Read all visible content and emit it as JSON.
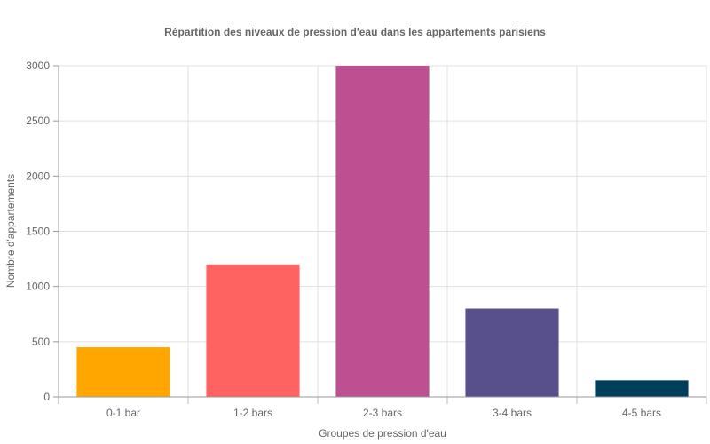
{
  "chart_data": {
    "type": "bar",
    "title": "Répartition des niveaux de pression d'eau dans les appartements parisiens",
    "xlabel": "Groupes de pression d'eau",
    "ylabel": "Nombre d'appartements",
    "categories": [
      "0-1 bar",
      "1-2 bars",
      "2-3 bars",
      "3-4 bars",
      "4-5 bars"
    ],
    "values": [
      450,
      1200,
      3000,
      800,
      150
    ],
    "colors": [
      "#ffa600",
      "#ff6361",
      "#bc5090",
      "#58508d",
      "#003f5c"
    ],
    "ylim": [
      0,
      3000
    ],
    "yticks": [
      0,
      500,
      1000,
      1500,
      2000,
      2500,
      3000
    ],
    "grid": true,
    "legend": "none"
  }
}
